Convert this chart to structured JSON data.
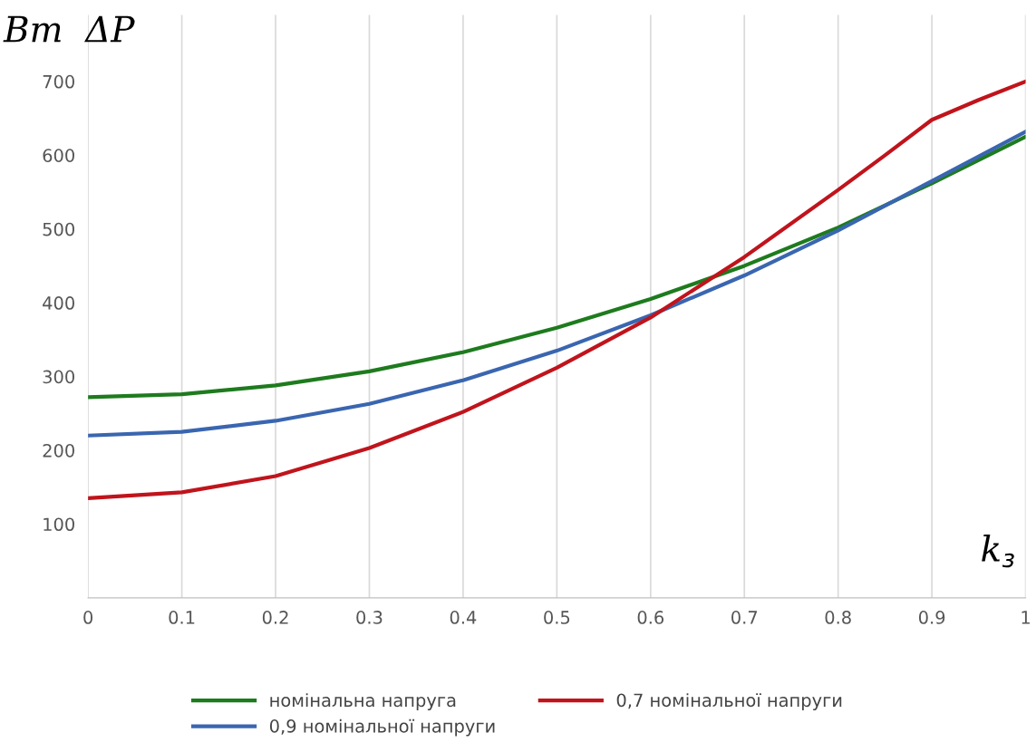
{
  "chart_data": {
    "type": "line",
    "ylabel": "Вт  ΔP",
    "xlabel": "k$_{з}$",
    "xlim": [
      0,
      1
    ],
    "xticks": [
      0,
      0.1,
      0.2,
      0.3,
      0.4,
      0.5,
      0.6,
      0.7,
      0.8,
      0.9,
      1
    ],
    "ylim": [
      0,
      790
    ],
    "yticks": [
      100,
      200,
      300,
      400,
      500,
      600,
      700
    ],
    "grid": "x",
    "legend": "bottom",
    "marker": "none",
    "line_style": "solid",
    "series": [
      {
        "name": "номінальна напруга",
        "color": "#1e7b1e",
        "x": [
          0,
          0.1,
          0.2,
          0.3,
          0.4,
          0.5,
          0.6,
          0.7,
          0.8,
          0.9,
          1
        ],
        "values": [
          272,
          276,
          288,
          307,
          333,
          366,
          405,
          450,
          502,
          562,
          625
        ]
      },
      {
        "name": "0,9 номінальної напруги",
        "color": "#3a66b0",
        "x": [
          0,
          0.1,
          0.2,
          0.3,
          0.4,
          0.5,
          0.6,
          0.7,
          0.8,
          0.9,
          1
        ],
        "values": [
          220,
          225,
          240,
          263,
          295,
          335,
          383,
          437,
          498,
          565,
          632
        ]
      },
      {
        "name": "0,7 номінальної напруги",
        "color": "#c0141c",
        "x": [
          0,
          0.1,
          0.2,
          0.3,
          0.4,
          0.5,
          0.6,
          0.7,
          0.8,
          0.85,
          0.9,
          0.95,
          1
        ],
        "values": [
          135,
          143,
          165,
          203,
          252,
          312,
          380,
          462,
          553,
          600,
          648,
          675,
          700
        ]
      }
    ]
  }
}
